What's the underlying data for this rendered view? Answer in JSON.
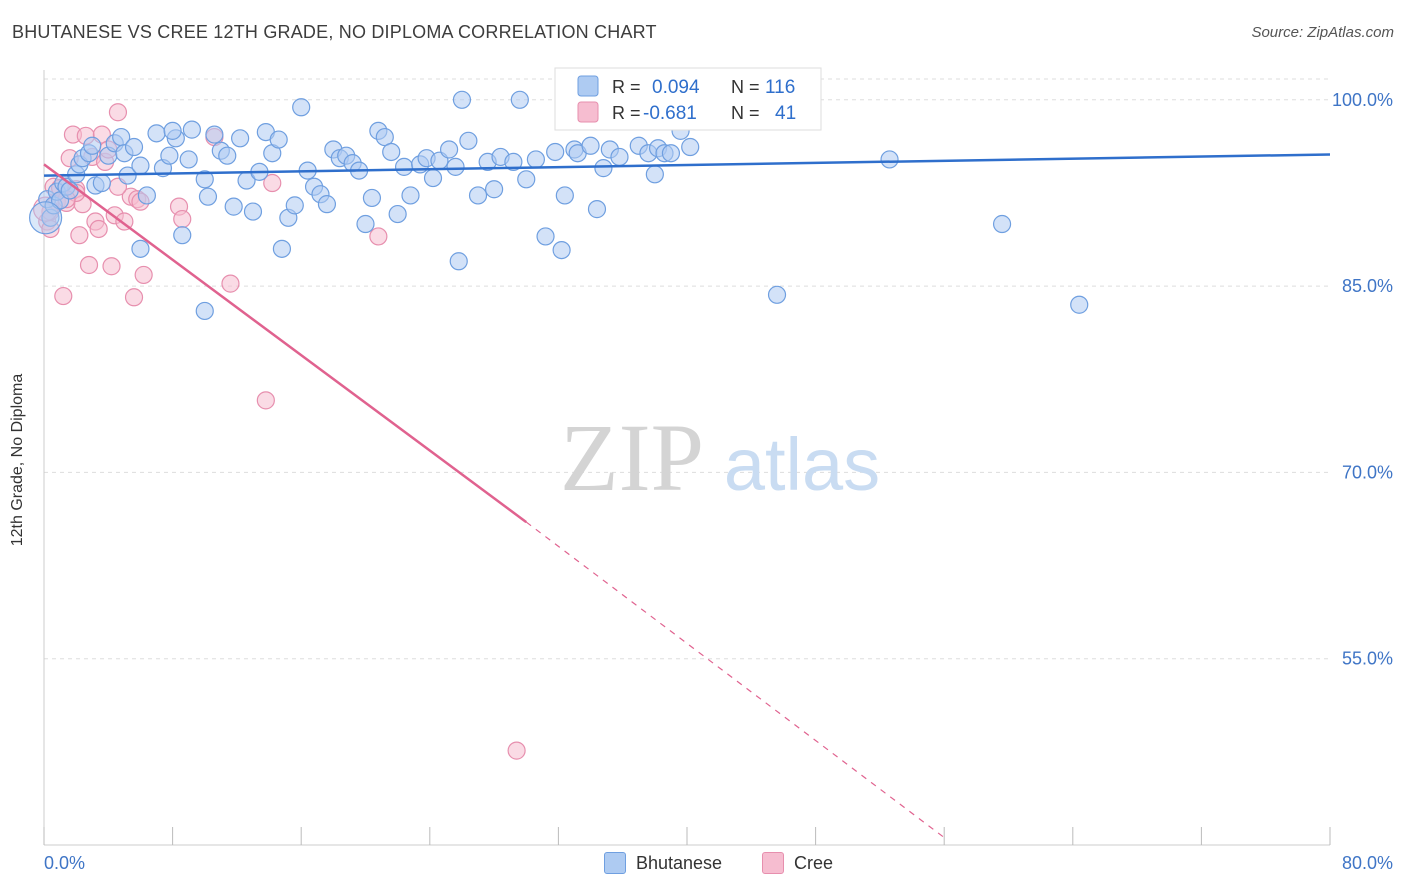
{
  "title": "BHUTANESE VS CREE 12TH GRADE, NO DIPLOMA CORRELATION CHART",
  "source": "Source: ZipAtlas.com",
  "watermark": {
    "zip": "ZIP",
    "atlas": "atlas"
  },
  "colors": {
    "blue_fill": "#aecbf2",
    "blue_stroke": "#6f9fe0",
    "blue_line": "#2f6fcc",
    "pink_fill": "#f6bdd0",
    "pink_stroke": "#e78fae",
    "pink_line": "#e0628f",
    "grid": "#dddddd",
    "axis_text": "#3f75c6"
  },
  "legend_top": {
    "rows": [
      {
        "r_label": "R =",
        "r_value": "0.094",
        "n_label": "N =",
        "n_value": "116"
      },
      {
        "r_label": "R =",
        "r_value": "-0.681",
        "n_label": "N =",
        "n_value": "41"
      }
    ]
  },
  "chart_data": {
    "type": "scatter",
    "title": "BHUTANESE VS CREE 12TH GRADE, NO DIPLOMA CORRELATION CHART",
    "xlabel": "",
    "ylabel": "12th Grade, No Diploma",
    "xlim": [
      0,
      80
    ],
    "ylim": [
      40,
      102.4
    ],
    "x_tick_labels": [
      "0.0%",
      "80.0%"
    ],
    "y_ticks": [
      55,
      70,
      85,
      100
    ],
    "y_tick_labels": [
      "55.0%",
      "70.0%",
      "85.0%",
      "100.0%"
    ],
    "grid": true,
    "legend_position": "bottom",
    "series": [
      {
        "name": "Bhutanese",
        "r": 0.094,
        "n": 116,
        "trend": {
          "x": [
            0,
            80
          ],
          "y": [
            93.9,
            95.6
          ]
        },
        "points": [
          [
            0.2,
            92.0
          ],
          [
            0.4,
            90.5
          ],
          [
            0.6,
            91.5
          ],
          [
            0.8,
            92.6
          ],
          [
            1.0,
            91.9
          ],
          [
            1.2,
            93.3
          ],
          [
            1.4,
            93.0
          ],
          [
            1.6,
            92.7
          ],
          [
            2.0,
            94.0
          ],
          [
            2.2,
            94.8
          ],
          [
            2.4,
            95.3
          ],
          [
            2.8,
            95.7
          ],
          [
            3.0,
            96.3
          ],
          [
            3.2,
            93.1
          ],
          [
            3.6,
            93.3
          ],
          [
            4.0,
            95.5
          ],
          [
            4.4,
            96.5
          ],
          [
            4.8,
            97.0
          ],
          [
            5.0,
            95.7
          ],
          [
            5.2,
            93.9
          ],
          [
            5.6,
            96.2
          ],
          [
            6.0,
            94.7
          ],
          [
            6.4,
            92.3
          ],
          [
            7.0,
            97.3
          ],
          [
            7.4,
            94.5
          ],
          [
            7.8,
            95.5
          ],
          [
            8.2,
            96.9
          ],
          [
            8.6,
            89.1
          ],
          [
            9.0,
            95.2
          ],
          [
            10.0,
            93.6
          ],
          [
            10.2,
            92.2
          ],
          [
            10.6,
            97.2
          ],
          [
            11.0,
            95.9
          ],
          [
            11.4,
            95.5
          ],
          [
            11.8,
            91.4
          ],
          [
            12.2,
            96.9
          ],
          [
            12.6,
            93.5
          ],
          [
            13.0,
            91.0
          ],
          [
            13.4,
            94.2
          ],
          [
            13.8,
            97.4
          ],
          [
            14.2,
            95.7
          ],
          [
            14.6,
            96.8
          ],
          [
            14.8,
            88.0
          ],
          [
            15.2,
            90.5
          ],
          [
            15.6,
            91.5
          ],
          [
            16.0,
            99.4
          ],
          [
            16.4,
            94.3
          ],
          [
            16.8,
            93.0
          ],
          [
            17.2,
            92.4
          ],
          [
            17.6,
            91.6
          ],
          [
            18.0,
            96.0
          ],
          [
            18.4,
            95.3
          ],
          [
            18.8,
            95.5
          ],
          [
            19.2,
            94.9
          ],
          [
            19.6,
            94.3
          ],
          [
            20.0,
            90.0
          ],
          [
            20.4,
            92.1
          ],
          [
            20.8,
            97.5
          ],
          [
            21.2,
            97.0
          ],
          [
            21.6,
            95.8
          ],
          [
            22.0,
            90.8
          ],
          [
            22.4,
            94.6
          ],
          [
            22.8,
            92.3
          ],
          [
            23.4,
            94.8
          ],
          [
            23.8,
            95.3
          ],
          [
            24.2,
            93.7
          ],
          [
            24.6,
            95.1
          ],
          [
            25.2,
            96.0
          ],
          [
            25.6,
            94.6
          ],
          [
            25.8,
            87.0
          ],
          [
            26.0,
            100.0
          ],
          [
            26.4,
            96.7
          ],
          [
            27.0,
            92.3
          ],
          [
            27.6,
            95.0
          ],
          [
            28.0,
            92.8
          ],
          [
            28.4,
            95.4
          ],
          [
            29.2,
            95.0
          ],
          [
            29.6,
            100.0
          ],
          [
            30.0,
            93.6
          ],
          [
            30.6,
            95.2
          ],
          [
            31.2,
            89.0
          ],
          [
            31.8,
            95.8
          ],
          [
            32.2,
            87.9
          ],
          [
            32.4,
            92.3
          ],
          [
            33.0,
            96.0
          ],
          [
            33.2,
            95.7
          ],
          [
            34.0,
            96.3
          ],
          [
            34.4,
            91.2
          ],
          [
            34.8,
            94.5
          ],
          [
            35.2,
            96.0
          ],
          [
            35.8,
            95.4
          ],
          [
            36.4,
            98.8
          ],
          [
            37.0,
            96.3
          ],
          [
            37.6,
            95.7
          ],
          [
            38.0,
            94.0
          ],
          [
            38.2,
            96.1
          ],
          [
            38.6,
            95.7
          ],
          [
            39.0,
            95.7
          ],
          [
            39.6,
            97.5
          ],
          [
            40.2,
            96.2
          ],
          [
            41.0,
            99.2
          ],
          [
            42.0,
            98.8
          ],
          [
            43.0,
            100.0
          ],
          [
            44.0,
            98.8
          ],
          [
            45.0,
            100.0
          ],
          [
            46.0,
            99.4
          ],
          [
            47.0,
            99.2
          ],
          [
            47.2,
            98.5
          ],
          [
            8.0,
            97.5
          ],
          [
            9.2,
            97.6
          ],
          [
            52.6,
            95.2
          ],
          [
            59.6,
            90.0
          ],
          [
            45.6,
            84.3
          ],
          [
            64.4,
            83.5
          ],
          [
            6.0,
            88.0
          ],
          [
            10.0,
            83.0
          ]
        ]
      },
      {
        "name": "Cree",
        "r": -0.681,
        "n": 41,
        "trend": {
          "x": [
            0,
            30
          ],
          "y": [
            94.8,
            66.0
          ],
          "dash_to": [
            56,
            40.6
          ]
        },
        "points": [
          [
            0.2,
            90.2
          ],
          [
            0.4,
            91.0
          ],
          [
            0.6,
            93.0
          ],
          [
            0.8,
            91.8
          ],
          [
            1.0,
            92.9
          ],
          [
            1.2,
            84.2
          ],
          [
            1.4,
            91.7
          ],
          [
            1.6,
            95.3
          ],
          [
            1.8,
            97.2
          ],
          [
            2.0,
            92.8
          ],
          [
            2.2,
            89.1
          ],
          [
            2.4,
            91.6
          ],
          [
            2.6,
            97.1
          ],
          [
            2.8,
            86.7
          ],
          [
            3.0,
            95.4
          ],
          [
            3.2,
            90.2
          ],
          [
            3.4,
            89.6
          ],
          [
            3.6,
            97.2
          ],
          [
            3.8,
            95.0
          ],
          [
            4.0,
            96.0
          ],
          [
            4.2,
            86.6
          ],
          [
            4.4,
            90.7
          ],
          [
            4.6,
            99.0
          ],
          [
            5.0,
            90.2
          ],
          [
            5.4,
            92.2
          ],
          [
            5.6,
            84.1
          ],
          [
            5.8,
            92.0
          ],
          [
            6.2,
            85.9
          ],
          [
            8.4,
            91.4
          ],
          [
            8.6,
            90.4
          ],
          [
            10.6,
            97.0
          ],
          [
            11.6,
            85.2
          ],
          [
            13.8,
            75.8
          ],
          [
            14.2,
            93.3
          ],
          [
            20.8,
            89.0
          ],
          [
            29.4,
            47.6
          ],
          [
            2.0,
            92.5
          ],
          [
            4.6,
            93.0
          ],
          [
            1.4,
            92.0
          ],
          [
            0.4,
            89.6
          ],
          [
            6.0,
            91.8
          ]
        ]
      }
    ]
  }
}
